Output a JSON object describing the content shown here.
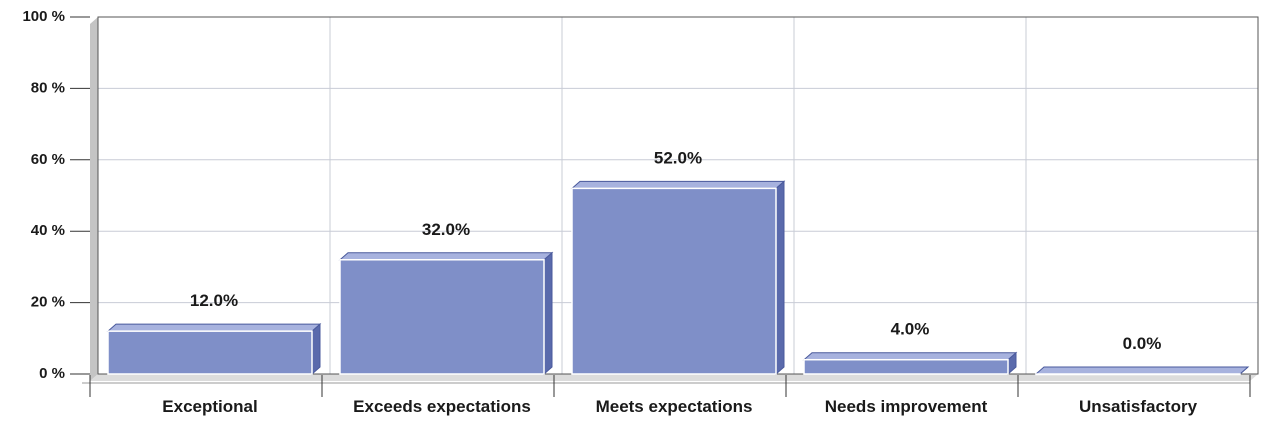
{
  "chart_data": {
    "type": "bar",
    "categories": [
      "Exceptional",
      "Exceeds expectations",
      "Meets expectations",
      "Needs improvement",
      "Unsatisfactory"
    ],
    "values": [
      12.0,
      32.0,
      52.0,
      4.0,
      0.0
    ],
    "value_labels": [
      "12.0%",
      "32.0%",
      "52.0%",
      "4.0%",
      "0.0%"
    ],
    "title": "",
    "xlabel": "",
    "ylabel": "",
    "ylim": [
      0,
      100
    ],
    "yticks": [
      0,
      20,
      40,
      60,
      80,
      100
    ],
    "ytick_labels": [
      "0 %",
      "20 %",
      "40 %",
      "60 %",
      "80 %",
      "100 %"
    ],
    "grid": true,
    "legend": "none",
    "style": "3d",
    "colors": {
      "bar_front": "#7f8fc8",
      "bar_top": "#a7b2de",
      "bar_side": "#5a6aac",
      "bar_edge": "#4a5a9c",
      "grid": "#c8ccd6",
      "frame": "#555555",
      "wall_shadow": "#c4c4c4"
    }
  }
}
